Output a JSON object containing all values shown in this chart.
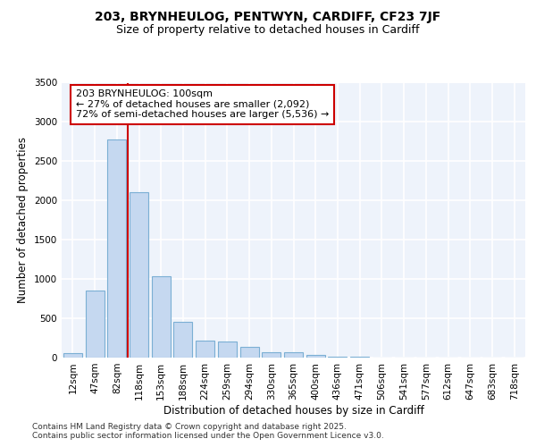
{
  "title_line1": "203, BRYNHEULOG, PENTWYN, CARDIFF, CF23 7JF",
  "title_line2": "Size of property relative to detached houses in Cardiff",
  "xlabel": "Distribution of detached houses by size in Cardiff",
  "ylabel": "Number of detached properties",
  "bar_labels": [
    "12sqm",
    "47sqm",
    "82sqm",
    "118sqm",
    "153sqm",
    "188sqm",
    "224sqm",
    "259sqm",
    "294sqm",
    "330sqm",
    "365sqm",
    "400sqm",
    "436sqm",
    "471sqm",
    "506sqm",
    "541sqm",
    "577sqm",
    "612sqm",
    "647sqm",
    "683sqm",
    "718sqm"
  ],
  "bar_values": [
    60,
    850,
    2780,
    2100,
    1040,
    460,
    215,
    210,
    135,
    70,
    65,
    35,
    15,
    8,
    4,
    2,
    1,
    1,
    1,
    1,
    1
  ],
  "bar_color": "#c5d8f0",
  "bar_edge_color": "#7bafd4",
  "annotation_text_line1": "203 BRYNHEULOG: 100sqm",
  "annotation_text_line2": "← 27% of detached houses are smaller (2,092)",
  "annotation_text_line3": "72% of semi-detached houses are larger (5,536) →",
  "annotation_box_color": "#ffffff",
  "annotation_edge_color": "#cc0000",
  "vline_color": "#cc0000",
  "vline_x": 2.5,
  "ylim": [
    0,
    3500
  ],
  "yticks": [
    0,
    500,
    1000,
    1500,
    2000,
    2500,
    3000,
    3500
  ],
  "background_color": "#ffffff",
  "plot_bg_color": "#eef3fb",
  "grid_color": "#ffffff",
  "footer_text": "Contains HM Land Registry data © Crown copyright and database right 2025.\nContains public sector information licensed under the Open Government Licence v3.0.",
  "title_fontsize": 10,
  "subtitle_fontsize": 9,
  "axis_label_fontsize": 8.5,
  "tick_fontsize": 7.5,
  "annotation_fontsize": 8,
  "footer_fontsize": 6.5
}
